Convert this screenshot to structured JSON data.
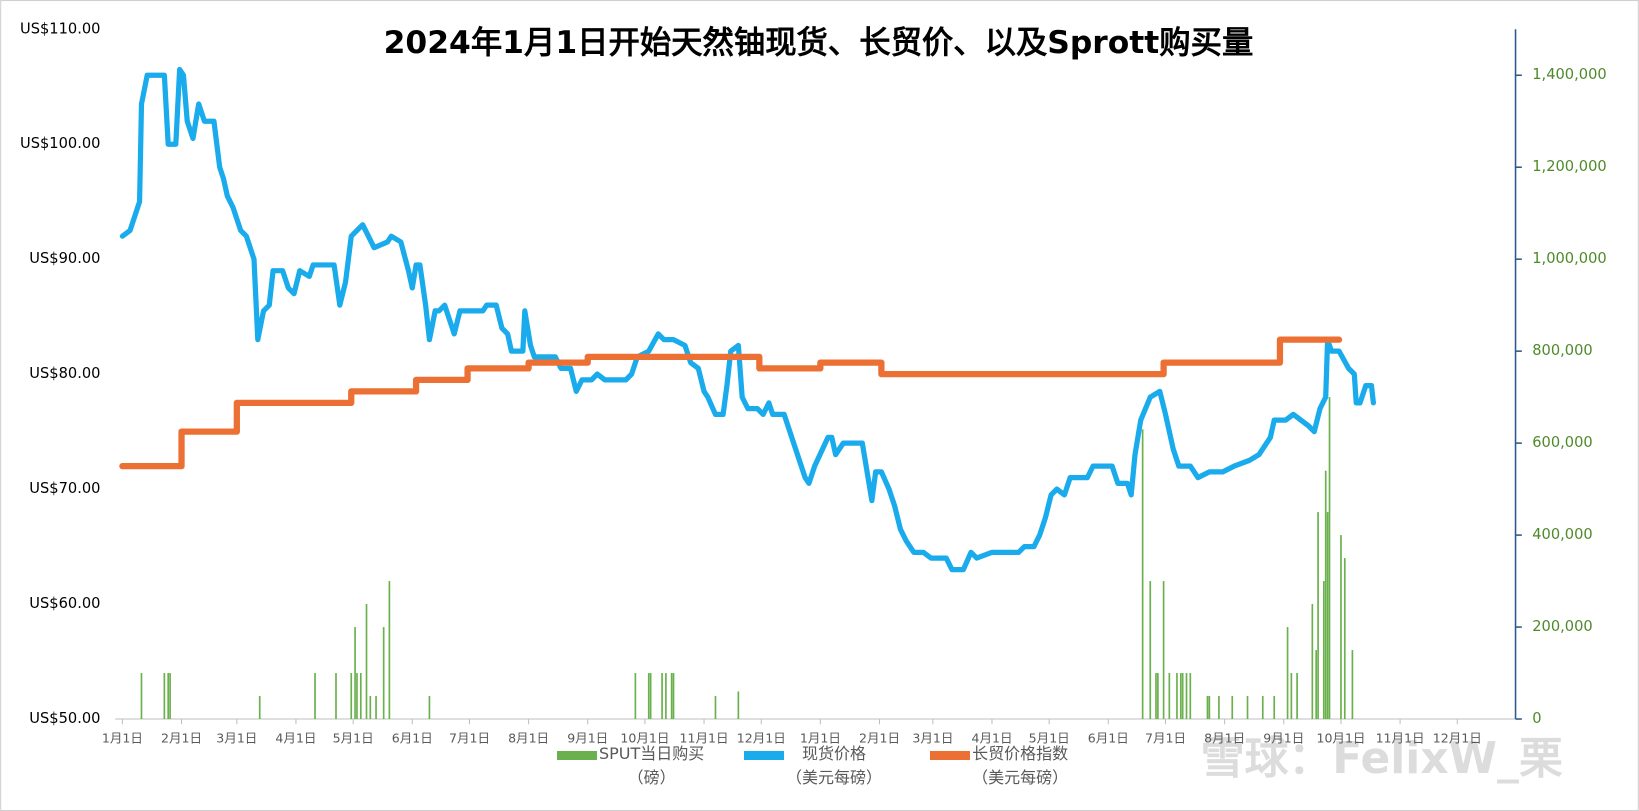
{
  "chart_data": {
    "type": "line",
    "title": "2024年1月1日开始天然铀现货、长贸价、以及Sprott购买量",
    "watermark": "雪球：FelixW_栗",
    "xlim": [
      0,
      730
    ],
    "xticks": [
      {
        "value": 0,
        "label": "1月1日"
      },
      {
        "value": 31,
        "label": "2月1日"
      },
      {
        "value": 60,
        "label": "3月1日"
      },
      {
        "value": 91,
        "label": "4月1日"
      },
      {
        "value": 121,
        "label": "5月1日"
      },
      {
        "value": 152,
        "label": "6月1日"
      },
      {
        "value": 182,
        "label": "7月1日"
      },
      {
        "value": 213,
        "label": "8月1日"
      },
      {
        "value": 244,
        "label": "9月1日"
      },
      {
        "value": 274,
        "label": "10月1日"
      },
      {
        "value": 305,
        "label": "11月1日"
      },
      {
        "value": 335,
        "label": "12月1日"
      },
      {
        "value": 366,
        "label": "1月1日"
      },
      {
        "value": 397,
        "label": "2月1日"
      },
      {
        "value": 425,
        "label": "3月1日"
      },
      {
        "value": 456,
        "label": "4月1日"
      },
      {
        "value": 486,
        "label": "5月1日"
      },
      {
        "value": 517,
        "label": "6月1日"
      },
      {
        "value": 547,
        "label": "7月1日"
      },
      {
        "value": 578,
        "label": "8月1日"
      },
      {
        "value": 609,
        "label": "9月1日"
      },
      {
        "value": 639,
        "label": "10月1日"
      },
      {
        "value": 670,
        "label": "11月1日"
      },
      {
        "value": 700,
        "label": "12月1日"
      }
    ],
    "ylim": [
      50,
      110
    ],
    "yticks": [
      {
        "value": 50,
        "label": "US$50.00"
      },
      {
        "value": 60,
        "label": "US$60.00"
      },
      {
        "value": 70,
        "label": "US$70.00"
      },
      {
        "value": 80,
        "label": "US$80.00"
      },
      {
        "value": 90,
        "label": "US$90.00"
      },
      {
        "value": 100,
        "label": "US$100.00"
      },
      {
        "value": 110,
        "label": "US$110.00"
      }
    ],
    "y2lim": [
      0,
      1500000
    ],
    "y2ticks": [
      0,
      {
        "value": 200000,
        "label": "200,000"
      },
      {
        "value": 400000,
        "label": "400,000"
      },
      {
        "value": 600000,
        "label": "600,000"
      },
      {
        "value": 800000,
        "label": "800,000"
      },
      {
        "value": 1000000,
        "label": "1,000,000"
      },
      {
        "value": 1200000,
        "label": "1,200,000"
      },
      {
        "value": 1400000,
        "label": "1,400,000"
      }
    ],
    "series": [
      {
        "name": "SPUT当日购买\n（磅）",
        "type": "bar",
        "axis": "y2",
        "color": "#6ab04c",
        "x": [
          10,
          22,
          24,
          25,
          72,
          101,
          112,
          120,
          122,
          123,
          125,
          128,
          130,
          133,
          137,
          140,
          161,
          269,
          276,
          277,
          283,
          285,
          288,
          289,
          311,
          323,
          535,
          539,
          542,
          543,
          546,
          549,
          553,
          555,
          556,
          558,
          560,
          569,
          570,
          575,
          582,
          590,
          598,
          604,
          611,
          613,
          616,
          624,
          626,
          627,
          630,
          631,
          632,
          633,
          639,
          641,
          645
        ],
        "values": [
          100000,
          100000,
          100000,
          100000,
          50000,
          100000,
          100000,
          100000,
          200000,
          100000,
          100000,
          250000,
          50000,
          50000,
          200000,
          300000,
          50000,
          100000,
          100000,
          100000,
          100000,
          100000,
          100000,
          100000,
          50000,
          60000,
          630000,
          300000,
          100000,
          100000,
          300000,
          100000,
          100000,
          100000,
          100000,
          100000,
          100000,
          50000,
          50000,
          50000,
          50000,
          50000,
          50000,
          50000,
          200000,
          100000,
          100000,
          250000,
          150000,
          450000,
          300000,
          540000,
          450000,
          700000,
          400000,
          350000,
          150000
        ]
      },
      {
        "name": "现货价格\n（美元每磅）",
        "type": "line",
        "axis": "y",
        "color": "#1aabec",
        "x": [
          0,
          4,
          9,
          10,
          13,
          22,
          24,
          28,
          30,
          32,
          34,
          37,
          40,
          43,
          48,
          51,
          53,
          55,
          58,
          62,
          65,
          69,
          71,
          74,
          77,
          79,
          84,
          87,
          90,
          93,
          98,
          100,
          111,
          114,
          117,
          120,
          126,
          129,
          132,
          139,
          141,
          146,
          150,
          152,
          154,
          156,
          159,
          161,
          164,
          166,
          169,
          174,
          177,
          189,
          191,
          196,
          199,
          202,
          204,
          210,
          211,
          214,
          216,
          227,
          230,
          235,
          238,
          241,
          246,
          249,
          253,
          264,
          267,
          270,
          276,
          281,
          284,
          289,
          295,
          298,
          302,
          305,
          307,
          311,
          315,
          317,
          319,
          323,
          325,
          328,
          333,
          336,
          339,
          341,
          347,
          351,
          355,
          358,
          360,
          363,
          370,
          372,
          374,
          378,
          388,
          391,
          393,
          395,
          398,
          402,
          405,
          408,
          411,
          415,
          420,
          424,
          432,
          435,
          441,
          445,
          448,
          456,
          462,
          470,
          473,
          478,
          481,
          484,
          487,
          490,
          494,
          497,
          506,
          509,
          519,
          522,
          527,
          529,
          531,
          534,
          539,
          544,
          547,
          551,
          554,
          560,
          564,
          570,
          577,
          583,
          591,
          596,
          602,
          604,
          610,
          614,
          618,
          622,
          625,
          628,
          631,
          632,
          634,
          638,
          643,
          646,
          647,
          649,
          652,
          655,
          656
        ],
        "values": [
          92,
          92.5,
          95,
          103.5,
          106,
          106,
          100,
          100,
          106.5,
          106,
          102,
          100.5,
          103.5,
          102,
          102,
          98,
          97,
          95.5,
          94.5,
          92.5,
          92,
          90,
          83,
          85.5,
          86,
          89,
          89,
          87.5,
          87,
          89,
          88.5,
          89.5,
          89.5,
          86,
          88,
          92,
          93,
          92,
          91,
          91.5,
          92,
          91.5,
          89,
          87.5,
          89.5,
          89.5,
          86,
          83,
          85.5,
          85.5,
          86,
          83.5,
          85.5,
          85.5,
          86,
          86,
          84,
          83.5,
          82,
          82,
          85.5,
          82.5,
          81.5,
          81.5,
          80.5,
          80.5,
          78.5,
          79.5,
          79.5,
          80,
          79.5,
          79.5,
          80,
          81.5,
          82,
          83.5,
          83,
          83,
          82.5,
          81,
          80.5,
          78.5,
          78,
          76.5,
          76.5,
          79,
          82,
          82.5,
          78,
          77,
          77,
          76.5,
          77.5,
          76.5,
          76.5,
          74.5,
          72.5,
          71,
          70.5,
          72,
          74.5,
          74.5,
          73,
          74,
          74,
          71,
          69,
          71.5,
          71.5,
          70,
          68.5,
          66.5,
          65.5,
          64.5,
          64.5,
          64,
          64,
          63,
          63,
          64.5,
          64,
          64.5,
          64.5,
          64.5,
          65,
          65,
          66,
          67.5,
          69.5,
          70,
          69.5,
          71,
          71,
          72,
          72,
          70.5,
          70.5,
          69.5,
          73,
          76,
          78,
          78.5,
          76.5,
          73.5,
          72,
          72,
          71,
          71.5,
          71.5,
          72,
          72.5,
          73,
          74.5,
          76,
          76,
          76.5,
          76,
          75.5,
          75,
          77,
          78,
          83,
          82,
          82,
          80.5,
          80,
          77.5,
          77.5,
          79,
          79,
          77.5
        ]
      },
      {
        "name": "长贸价格指数\n（美元每磅）",
        "type": "line",
        "axis": "y",
        "color": "#ec7033",
        "x": [
          0,
          31,
          31,
          60,
          60,
          120,
          120,
          154,
          154,
          181,
          181,
          213,
          213,
          244,
          244,
          334,
          334,
          366,
          366,
          398,
          398,
          546,
          546,
          607,
          607,
          638
        ],
        "values": [
          72,
          72,
          75,
          75,
          77.5,
          77.5,
          78.5,
          78.5,
          79.5,
          79.5,
          80.5,
          80.5,
          81,
          81,
          81.5,
          81.5,
          80.5,
          80.5,
          81,
          81,
          80,
          80,
          81,
          81,
          83,
          83
        ]
      }
    ]
  }
}
